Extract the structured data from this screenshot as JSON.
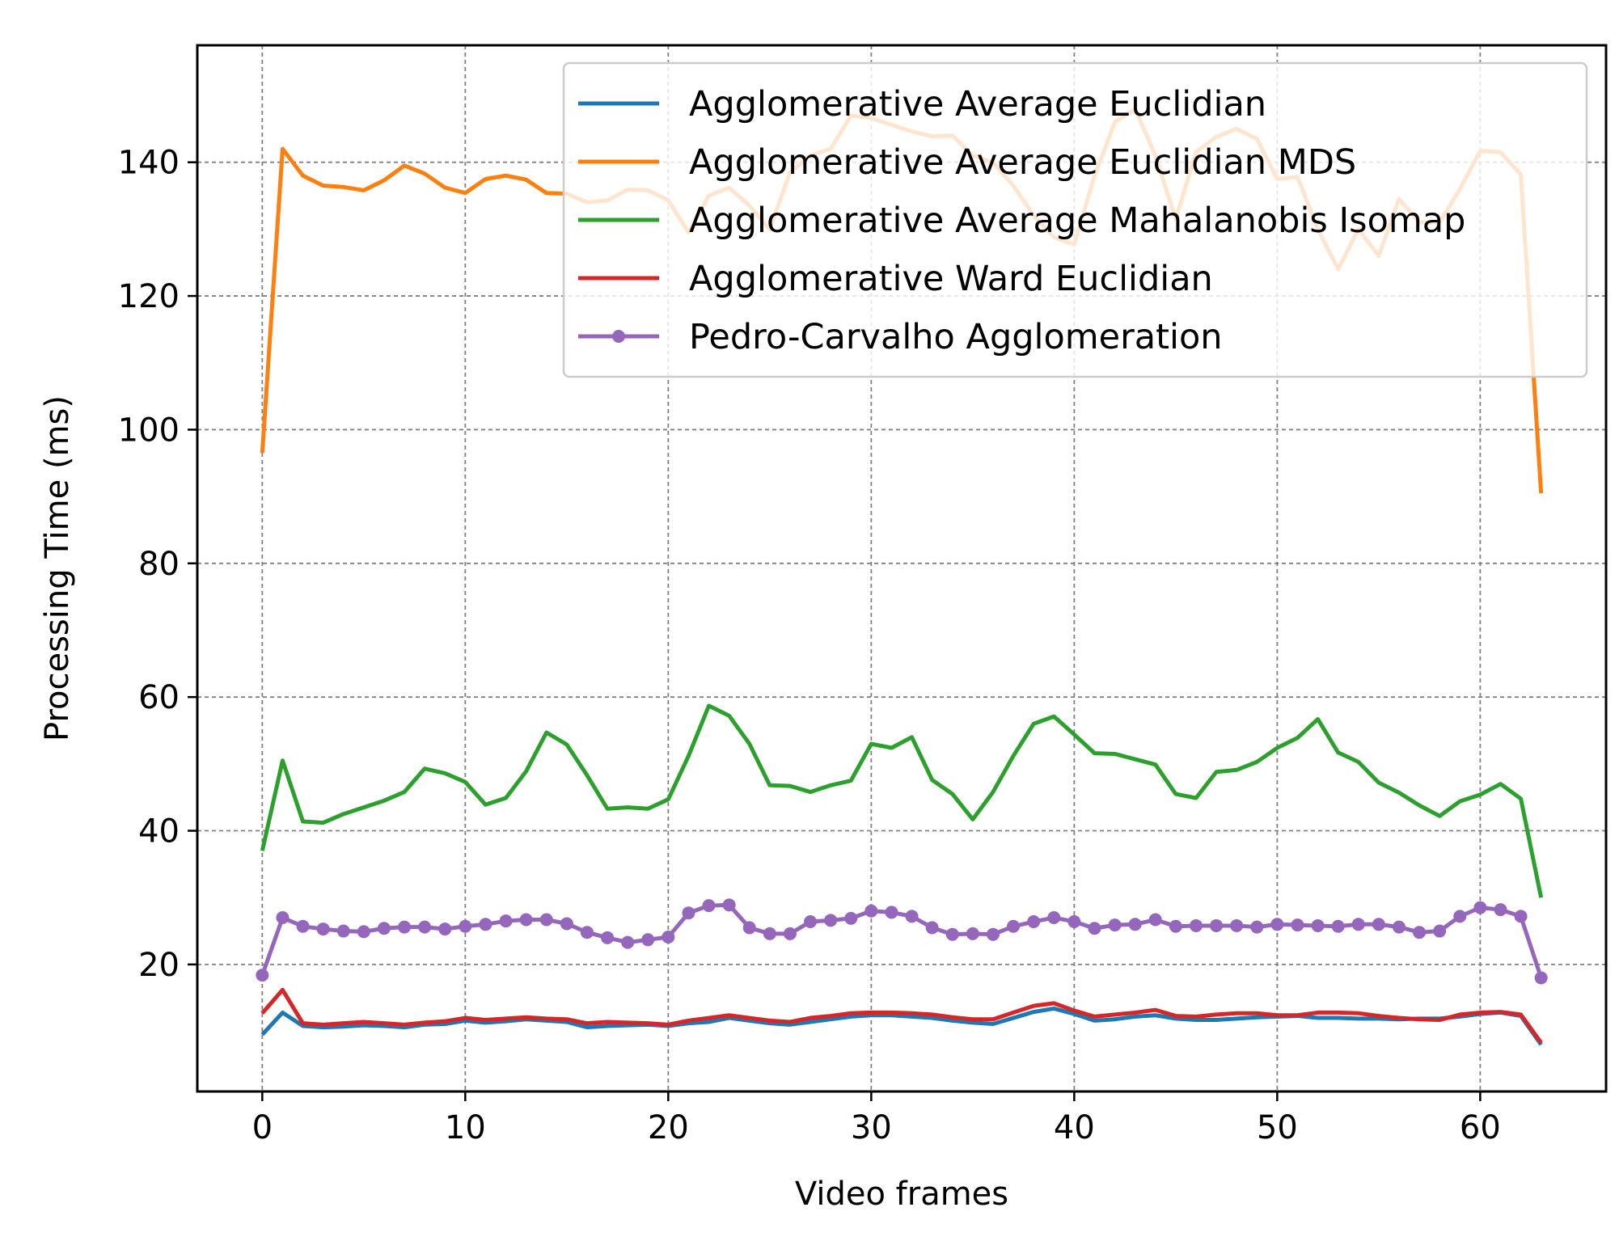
{
  "chart_data": {
    "type": "line",
    "title": "",
    "xlabel": "Video frames",
    "ylabel": "Processing Time (ms)",
    "xlim": [
      -3.2,
      66.2
    ],
    "ylim": [
      1,
      157.5
    ],
    "xticks": [
      0,
      10,
      20,
      30,
      40,
      50,
      60
    ],
    "yticks": [
      20,
      40,
      60,
      80,
      100,
      120,
      140
    ],
    "grid": true,
    "legend_position": "top-right",
    "x": [
      0,
      1,
      2,
      3,
      4,
      5,
      6,
      7,
      8,
      9,
      10,
      11,
      12,
      13,
      14,
      15,
      16,
      17,
      18,
      19,
      20,
      21,
      22,
      23,
      24,
      25,
      26,
      27,
      28,
      29,
      30,
      31,
      32,
      33,
      34,
      35,
      36,
      37,
      38,
      39,
      40,
      41,
      42,
      43,
      44,
      45,
      46,
      47,
      48,
      49,
      50,
      51,
      52,
      53,
      54,
      55,
      56,
      57,
      58,
      59,
      60,
      61,
      62,
      63
    ],
    "series": [
      {
        "name": "Agglomerative Average Euclidian",
        "color": "#1f77b4",
        "marker": "none",
        "values": [
          9.5,
          12.8,
          10.8,
          10.6,
          10.7,
          10.9,
          10.8,
          10.6,
          11.0,
          11.1,
          11.6,
          11.3,
          11.5,
          11.8,
          11.6,
          11.4,
          10.6,
          10.8,
          10.9,
          11.0,
          10.8,
          11.2,
          11.4,
          12.0,
          11.6,
          11.2,
          11.0,
          11.4,
          11.8,
          12.2,
          12.4,
          12.4,
          12.2,
          12.0,
          11.6,
          11.3,
          11.1,
          12.0,
          12.9,
          13.4,
          12.6,
          11.6,
          11.8,
          12.2,
          12.4,
          11.9,
          11.7,
          11.7,
          11.9,
          12.1,
          12.2,
          12.3,
          12.0,
          12.0,
          11.9,
          11.9,
          11.8,
          11.9,
          11.9,
          12.2,
          12.6,
          12.8,
          12.3,
          8.0
        ]
      },
      {
        "name": "Agglomerative Average Euclidian MDS",
        "color": "#ff7f0e",
        "marker": "none",
        "values": [
          96.5,
          142.0,
          138.0,
          136.5,
          136.3,
          135.8,
          137.3,
          139.5,
          138.3,
          136.2,
          135.4,
          137.5,
          138.0,
          137.4,
          135.4,
          135.3,
          134.0,
          134.3,
          135.9,
          135.8,
          134.3,
          129.5,
          135.0,
          136.2,
          133.5,
          130.0,
          138.5,
          141.0,
          142.0,
          147.0,
          146.6,
          145.6,
          144.6,
          143.9,
          144.0,
          141.0,
          140.0,
          136.5,
          132.0,
          128.8,
          127.7,
          138.0,
          146.0,
          148.0,
          141.0,
          131.5,
          141.5,
          143.8,
          145.0,
          143.5,
          137.5,
          137.8,
          130.0,
          124.0,
          130.0,
          126.0,
          134.5,
          131.0,
          131.0,
          136.0,
          141.7,
          141.5,
          138.2,
          90.5
        ]
      },
      {
        "name": "Agglomerative Average Mahalanobis Isomap",
        "color": "#2ca02c",
        "marker": "none",
        "values": [
          37.0,
          50.5,
          41.4,
          41.2,
          42.5,
          43.5,
          44.5,
          45.8,
          49.3,
          48.6,
          47.3,
          43.9,
          44.9,
          48.9,
          54.7,
          52.9,
          48.3,
          43.3,
          43.5,
          43.3,
          44.7,
          51.2,
          58.7,
          57.2,
          53.0,
          46.8,
          46.7,
          45.8,
          46.8,
          47.5,
          53.0,
          52.4,
          54.0,
          47.6,
          45.5,
          41.7,
          45.8,
          51.2,
          56.0,
          57.1,
          54.4,
          51.6,
          51.5,
          50.7,
          49.9,
          45.5,
          44.9,
          48.8,
          49.1,
          50.3,
          52.4,
          53.9,
          56.7,
          51.7,
          50.3,
          47.2,
          45.7,
          43.8,
          42.2,
          44.4,
          45.4,
          47.0,
          44.8,
          30.0
        ]
      },
      {
        "name": "Agglomerative Ward Euclidian",
        "color": "#d62728",
        "marker": "none",
        "values": [
          12.7,
          16.2,
          11.2,
          11.0,
          11.2,
          11.4,
          11.2,
          11.0,
          11.3,
          11.5,
          12.0,
          11.7,
          11.9,
          12.1,
          11.9,
          11.8,
          11.2,
          11.4,
          11.3,
          11.2,
          11.0,
          11.6,
          12.0,
          12.4,
          12.0,
          11.6,
          11.4,
          12.0,
          12.3,
          12.7,
          12.8,
          12.8,
          12.7,
          12.5,
          12.1,
          11.8,
          11.8,
          12.8,
          13.8,
          14.2,
          13.1,
          12.2,
          12.5,
          12.8,
          13.2,
          12.3,
          12.2,
          12.5,
          12.7,
          12.7,
          12.4,
          12.4,
          12.8,
          12.8,
          12.7,
          12.3,
          12.0,
          11.8,
          11.7,
          12.5,
          12.8,
          12.9,
          12.5,
          8.3
        ]
      },
      {
        "name": "Pedro-Carvalho Agglomeration",
        "color": "#9467bd",
        "marker": "circle",
        "values": [
          18.4,
          27.0,
          25.7,
          25.3,
          25.0,
          24.9,
          25.4,
          25.6,
          25.6,
          25.3,
          25.7,
          26.0,
          26.5,
          26.7,
          26.7,
          26.1,
          24.8,
          24.0,
          23.3,
          23.7,
          24.1,
          27.7,
          28.8,
          28.9,
          25.5,
          24.6,
          24.6,
          26.4,
          26.6,
          26.9,
          28.0,
          27.8,
          27.2,
          25.5,
          24.5,
          24.6,
          24.5,
          25.7,
          26.4,
          27.0,
          26.4,
          25.4,
          25.9,
          26.0,
          26.7,
          25.7,
          25.8,
          25.8,
          25.8,
          25.6,
          26.0,
          25.9,
          25.8,
          25.7,
          26.0,
          26.0,
          25.6,
          24.8,
          25.0,
          27.2,
          28.5,
          28.2,
          27.2,
          18.0
        ]
      }
    ]
  }
}
